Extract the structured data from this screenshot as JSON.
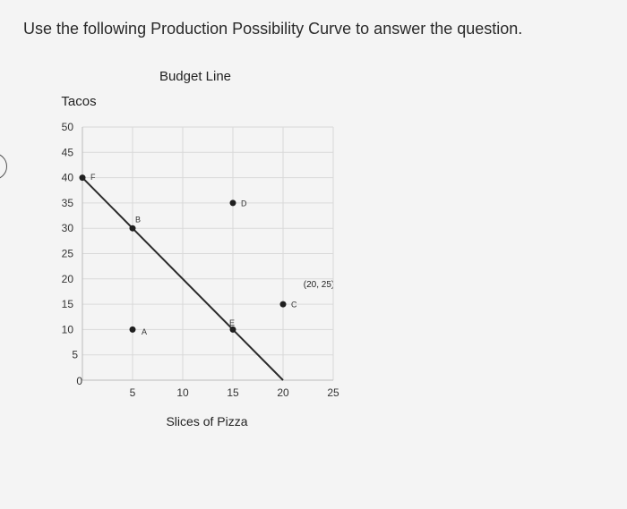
{
  "question": "Use the following Production Possibility Curve to answer the question.",
  "chart_data": {
    "type": "line",
    "title": "Budget Line",
    "xlabel": "Slices of Pizza",
    "ylabel": "Tacos",
    "xlim": [
      0,
      25
    ],
    "ylim": [
      0,
      50
    ],
    "x_ticks": [
      "5",
      "10",
      "15",
      "20",
      "25"
    ],
    "y_ticks": [
      "0",
      "5",
      "10",
      "15",
      "20",
      "25",
      "30",
      "35",
      "40",
      "45",
      "50"
    ],
    "grid": true,
    "series": [
      {
        "x": [
          0,
          5,
          15,
          20
        ],
        "y": [
          40,
          30,
          10,
          0
        ]
      }
    ],
    "points": [
      {
        "label": "F",
        "x": 0,
        "y": 40
      },
      {
        "label": "B",
        "x": 5,
        "y": 30
      },
      {
        "label": "A",
        "x": 5,
        "y": 10
      },
      {
        "label": "D",
        "x": 15,
        "y": 35
      },
      {
        "label": "E",
        "x": 15,
        "y": 10
      },
      {
        "label": "C",
        "x": 20,
        "y": 15
      }
    ],
    "annotation": "(20, 25)",
    "colors": {
      "line": "#2b2b2b",
      "point": "#1f1f1f",
      "grid": "#d9d9d9"
    }
  }
}
